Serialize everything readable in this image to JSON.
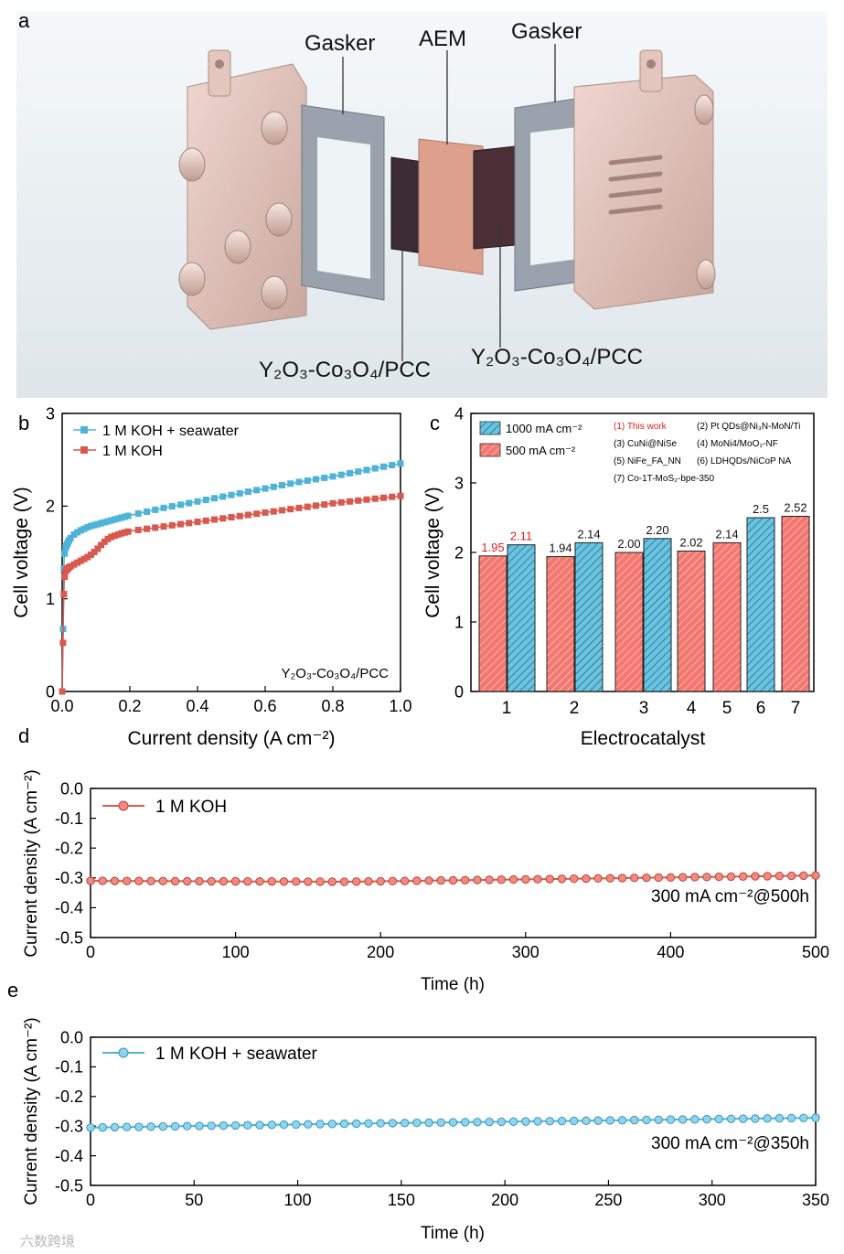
{
  "colors": {
    "kohBar": "#f4786f",
    "kohLine": "#d9594f",
    "seaBar": "#67c4e2",
    "seaLine": "#4fb3d9",
    "axis": "#000000",
    "redText": "#e0211f"
  },
  "panel_a": {
    "letter": "a",
    "labels": {
      "gasket_left": "Gasker",
      "aem": "AEM",
      "gasket_right": "Gasker",
      "catalyst_left": "Y₂O₃-Co₃O₄/PCC",
      "catalyst_right": "Y₂O₃-Co₃O₄/PCC"
    }
  },
  "chart_data": [
    {
      "id": "b",
      "type": "line",
      "letter": "b",
      "xlabel": "Current density (A cm⁻²)",
      "ylabel": "Cell voltage (V)",
      "xlim": [
        0,
        1.0
      ],
      "ylim": [
        0,
        3
      ],
      "xticks": [
        "0.0",
        "0.2",
        "0.4",
        "0.6",
        "0.8",
        "1.0"
      ],
      "yticks": [
        "0",
        "1",
        "2",
        "3"
      ],
      "annotation": "Y₂O₃-Co₃O₄/PCC",
      "series": [
        {
          "name": "1 M KOH + seawater",
          "color": "#4fb3d9",
          "points": [
            [
              0,
              0
            ],
            [
              0.002,
              0.5
            ],
            [
              0.004,
              1.2
            ],
            [
              0.006,
              1.45
            ],
            [
              0.01,
              1.55
            ],
            [
              0.02,
              1.63
            ],
            [
              0.03,
              1.68
            ],
            [
              0.05,
              1.73
            ],
            [
              0.08,
              1.78
            ],
            [
              0.12,
              1.82
            ],
            [
              0.16,
              1.86
            ],
            [
              0.2,
              1.9
            ],
            [
              0.3,
              1.98
            ],
            [
              0.4,
              2.05
            ],
            [
              0.5,
              2.12
            ],
            [
              0.6,
              2.19
            ],
            [
              0.7,
              2.26
            ],
            [
              0.8,
              2.32
            ],
            [
              0.9,
              2.39
            ],
            [
              1.0,
              2.46
            ]
          ]
        },
        {
          "name": "1 M KOH",
          "color": "#d9594f",
          "points": [
            [
              0,
              0
            ],
            [
              0.002,
              0.4
            ],
            [
              0.004,
              0.9
            ],
            [
              0.006,
              1.2
            ],
            [
              0.01,
              1.3
            ],
            [
              0.02,
              1.34
            ],
            [
              0.04,
              1.38
            ],
            [
              0.06,
              1.42
            ],
            [
              0.08,
              1.46
            ],
            [
              0.1,
              1.52
            ],
            [
              0.12,
              1.6
            ],
            [
              0.14,
              1.66
            ],
            [
              0.17,
              1.7
            ],
            [
              0.2,
              1.73
            ],
            [
              0.3,
              1.78
            ],
            [
              0.4,
              1.83
            ],
            [
              0.5,
              1.88
            ],
            [
              0.6,
              1.93
            ],
            [
              0.7,
              1.98
            ],
            [
              0.8,
              2.03
            ],
            [
              0.9,
              2.07
            ],
            [
              1.0,
              2.11
            ]
          ]
        }
      ]
    },
    {
      "id": "c",
      "type": "bar",
      "letter": "c",
      "xlabel": "Electrocatalyst",
      "ylabel": "Cell voltage (V)",
      "ylim": [
        0,
        4
      ],
      "yticks": [
        "0",
        "1",
        "2",
        "3",
        "4"
      ],
      "categories": [
        "1",
        "2",
        "3",
        "4",
        "5",
        "6",
        "7"
      ],
      "legend": [
        {
          "name": "1000 mA cm⁻²",
          "color": "#67c4e2"
        },
        {
          "name": "500  mA cm⁻²",
          "color": "#f4786f"
        }
      ],
      "catalyst_list": [
        "(1) This work",
        "(2) Pt QDs@Ni₃N-MoN/Ti",
        "(3) CuNi@NiSe",
        "(4) MoNi4/MoO₂-NF",
        "(5) NiFe_FA_NN",
        "(6) LDHQDs/NiCoP NA",
        "(7) Co-1T-MoS₂-bpe-350"
      ],
      "bars": [
        {
          "category": "1",
          "series": "500",
          "value": 1.95,
          "label": "1.95",
          "highlight": true
        },
        {
          "category": "1",
          "series": "1000",
          "value": 2.11,
          "label": "2.11",
          "highlight": true
        },
        {
          "category": "2",
          "series": "500",
          "value": 1.94,
          "label": "1.94",
          "highlight": false
        },
        {
          "category": "2",
          "series": "1000",
          "value": 2.14,
          "label": "2.14",
          "highlight": false
        },
        {
          "category": "3",
          "series": "500",
          "value": 2.0,
          "label": "2.00",
          "highlight": false
        },
        {
          "category": "3",
          "series": "1000",
          "value": 2.2,
          "label": "2.20",
          "highlight": false
        },
        {
          "category": "4",
          "series": "500",
          "value": 2.02,
          "label": "2.02",
          "highlight": false
        },
        {
          "category": "5",
          "series": "500",
          "value": 2.14,
          "label": "2.14",
          "highlight": false
        },
        {
          "category": "6",
          "series": "1000",
          "value": 2.5,
          "label": "2.5",
          "highlight": false
        },
        {
          "category": "7",
          "series": "500",
          "value": 2.52,
          "label": "2.52",
          "highlight": false
        }
      ]
    },
    {
      "id": "d",
      "type": "line",
      "letter": "d",
      "xlabel": "Time (h)",
      "ylabel": "Current density (A cm⁻²)",
      "xlim": [
        0,
        500
      ],
      "ylim": [
        -0.5,
        0.0
      ],
      "xticks": [
        "0",
        "100",
        "200",
        "300",
        "400",
        "500"
      ],
      "yticks": [
        "0.0",
        "-0.1",
        "-0.2",
        "-0.3",
        "-0.4",
        "-0.5"
      ],
      "annotation": "300 mA cm⁻²@500h",
      "series": [
        {
          "name": "1 M KOH",
          "color": "#d9594f",
          "start": -0.31,
          "mid": -0.313,
          "end": -0.292,
          "count": 61
        }
      ]
    },
    {
      "id": "e",
      "type": "line",
      "letter": "e",
      "xlabel": "Time (h)",
      "ylabel": "Current density (A cm⁻²)",
      "xlim": [
        0,
        350
      ],
      "ylim": [
        -0.5,
        0.0
      ],
      "xticks": [
        "0",
        "50",
        "100",
        "150",
        "200",
        "250",
        "300",
        "350"
      ],
      "yticks": [
        "0.0",
        "-0.1",
        "-0.2",
        "-0.3",
        "-0.4",
        "-0.5"
      ],
      "annotation": "300 mA cm⁻²@350h",
      "series": [
        {
          "name": "1 M KOH + seawater",
          "color": "#4fb3d9",
          "start": -0.305,
          "mid": -0.292,
          "end": -0.272,
          "count": 61
        }
      ]
    }
  ],
  "watermark": "六数跨境"
}
